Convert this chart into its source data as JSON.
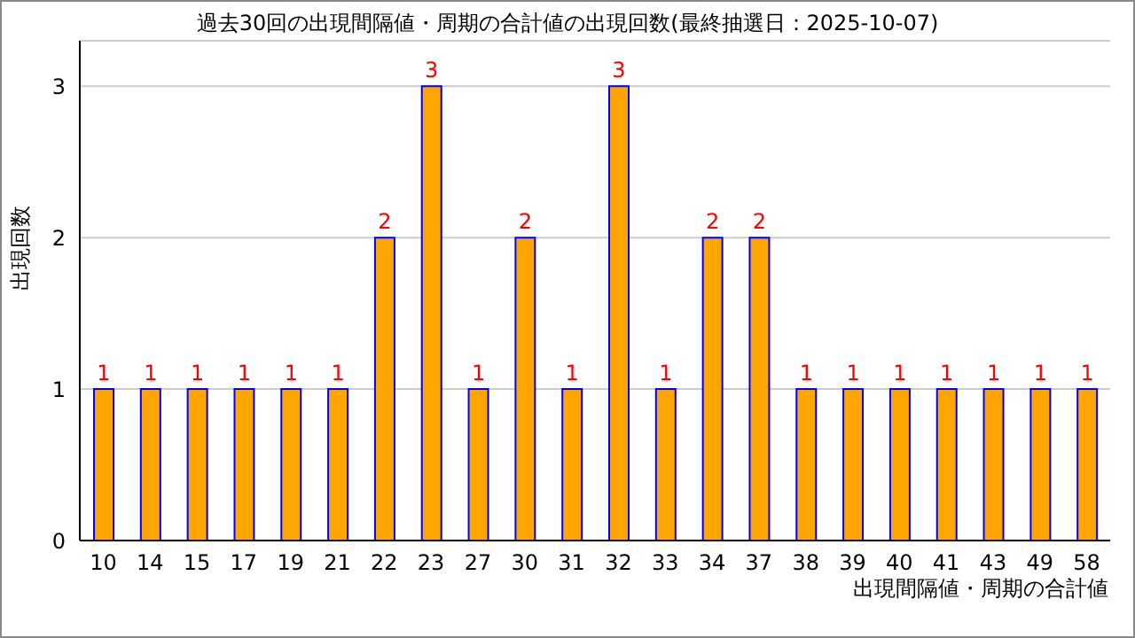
{
  "chart_data": {
    "type": "bar",
    "title": "過去30回の出現間隔値・周期の合計値の出現回数(最終抽選日：2025-10-07)",
    "xlabel": "出現間隔値・周期の合計値",
    "ylabel": "出現回数",
    "categories": [
      "10",
      "14",
      "15",
      "17",
      "19",
      "21",
      "22",
      "23",
      "27",
      "30",
      "31",
      "32",
      "33",
      "34",
      "37",
      "38",
      "39",
      "40",
      "41",
      "43",
      "49",
      "58"
    ],
    "values": [
      1,
      1,
      1,
      1,
      1,
      1,
      2,
      3,
      1,
      2,
      1,
      3,
      1,
      2,
      2,
      1,
      1,
      1,
      1,
      1,
      1,
      1
    ],
    "color": "#ffa500",
    "ylim": [
      0,
      3.3
    ],
    "yticks": [
      0,
      1,
      2,
      3
    ],
    "grid": "y",
    "data_labels": true
  }
}
